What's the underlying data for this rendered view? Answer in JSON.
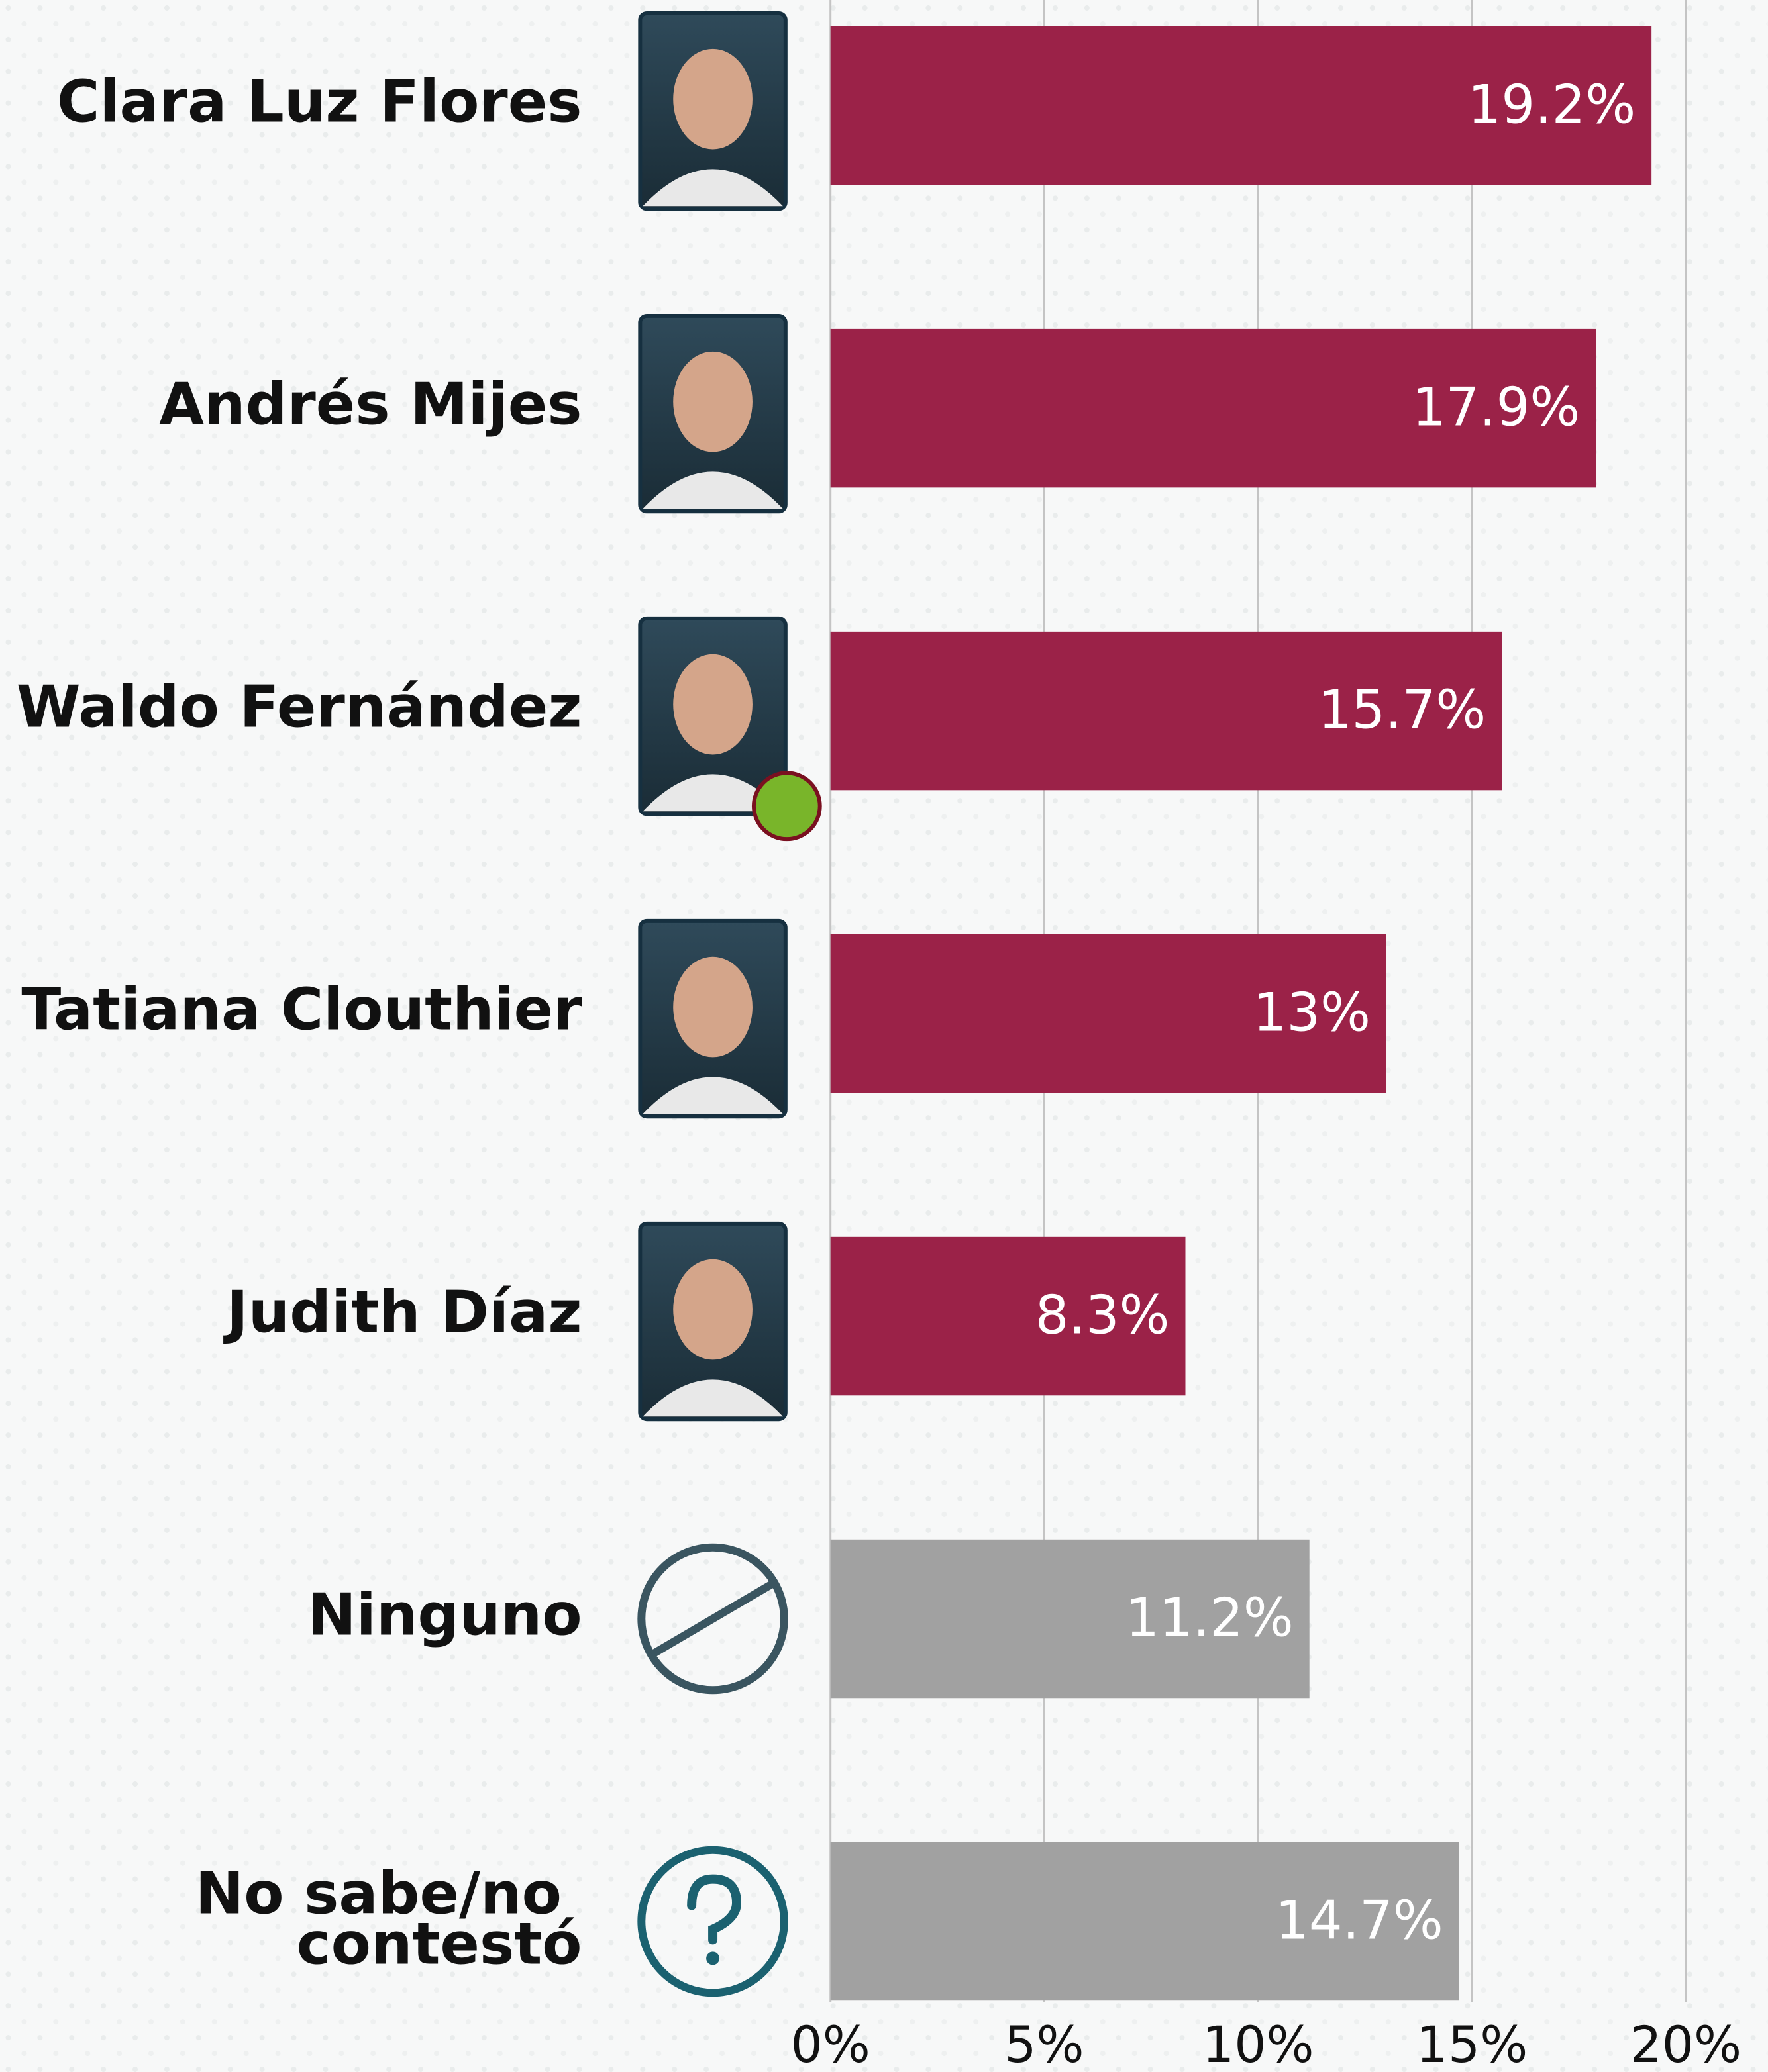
{
  "chart_data": {
    "type": "bar",
    "orientation": "horizontal",
    "categories": [
      "Clara Luz Flores",
      "Andrés Mijes",
      "Waldo Fernández",
      "Tatiana Clouthier",
      "Judith Díaz",
      "Ninguno",
      "No sabe/no contestó"
    ],
    "values": [
      19.2,
      17.9,
      15.7,
      13,
      8.3,
      11.2,
      14.7
    ],
    "value_labels": [
      "19.2%",
      "17.9%",
      "15.7%",
      "13%",
      "8.3%",
      "11.2%",
      "14.7%"
    ],
    "colors": [
      "#9b2248",
      "#9b2248",
      "#9b2248",
      "#9b2248",
      "#9b2248",
      "#a1a1a1",
      "#a1a1a1"
    ],
    "xlim": [
      0,
      20
    ],
    "xticks": [
      {
        "value": 0,
        "label": "0%"
      },
      {
        "value": 5,
        "label": "5%"
      },
      {
        "value": 10,
        "label": "10%"
      },
      {
        "value": 15,
        "label": "15%"
      },
      {
        "value": 20,
        "label": "20%"
      }
    ],
    "grid": true
  }
}
